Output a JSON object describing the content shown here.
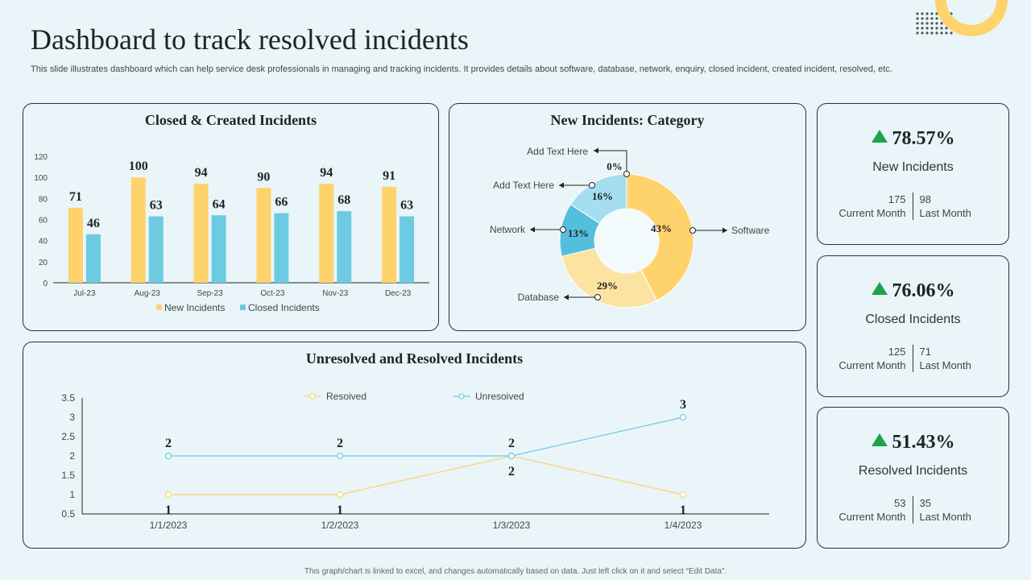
{
  "page": {
    "title": "Dashboard to track resolved incidents",
    "subtitle": "This slide illustrates dashboard which can help service desk professionals in managing and tracking incidents. It provides details about software, database, network, enquiry, closed incident, created incident, resolved, etc.",
    "footer": "This graph/chart is linked to excel, and changes automatically based on data. Just left click on it and select “Edit Data”."
  },
  "colors": {
    "yellow": "#ffd36b",
    "blue": "#6ccbe3",
    "light_yellow": "#fde3a2",
    "light_blue": "#a4def0",
    "mid_blue": "#54bfdc",
    "green": "#1ea24a"
  },
  "chart_data": [
    {
      "type": "bar",
      "title": "Closed & Created Incidents",
      "categories": [
        "Jul-23",
        "Aug-23",
        "Sep-23",
        "Oct-23",
        "Nov-23",
        "Dec-23"
      ],
      "series": [
        {
          "name": "New Incidents",
          "values": [
            71,
            100,
            94,
            90,
            94,
            91
          ],
          "color": "#ffd36b"
        },
        {
          "name": "Closed  Incidents",
          "values": [
            46,
            63,
            64,
            66,
            68,
            63
          ],
          "color": "#6ccbe3"
        }
      ],
      "ylim": [
        0,
        120
      ],
      "yticks": [
        0,
        20,
        40,
        60,
        80,
        100,
        120
      ],
      "legend": "bottom"
    },
    {
      "type": "pie",
      "title": "New Incidents: Category",
      "slices": [
        {
          "label": "Software",
          "value": 43,
          "value_label": "43%",
          "color": "#ffd36b"
        },
        {
          "label": "Database",
          "value": 29,
          "value_label": "29%",
          "color": "#fde3a2"
        },
        {
          "label": "Network",
          "value": 13,
          "value_label": "13%",
          "color": "#54bfdc"
        },
        {
          "label": "Add Text Here",
          "value": 16,
          "value_label": "16%",
          "color": "#a4def0"
        },
        {
          "label": "Add Text Here",
          "value": 0,
          "value_label": "0%",
          "color": "#6ccbe3"
        }
      ]
    },
    {
      "type": "line",
      "title": "Unresolved and Resolved Incidents",
      "x": [
        "1/1/2023",
        "1/2/2023",
        "1/3/2023",
        "1/4/2023"
      ],
      "series": [
        {
          "name": "Resoived",
          "values": [
            1,
            1,
            2,
            1
          ],
          "color": "#ffd36b"
        },
        {
          "name": "Unresoived",
          "values": [
            2,
            2,
            2,
            3
          ],
          "color": "#6ccbe3"
        }
      ],
      "ylim": [
        0.5,
        3.5
      ],
      "yticks": [
        "0.5",
        "1",
        "1.5",
        "2",
        "2.5",
        "3",
        "3.5"
      ],
      "legend": "top"
    }
  ],
  "kpis": [
    {
      "percent": "78.57%",
      "label": "New Incidents",
      "current_value": "175",
      "current_label": "Current Month",
      "last_value": "98",
      "last_label": "Last Month"
    },
    {
      "percent": "76.06%",
      "label": "Closed Incidents",
      "current_value": "125",
      "current_label": "Current Month",
      "last_value": "71",
      "last_label": "Last Month"
    },
    {
      "percent": "51.43%",
      "label": "Resolved Incidents",
      "current_value": "53",
      "current_label": "Current Month",
      "last_value": "35",
      "last_label": "Last Month"
    }
  ]
}
